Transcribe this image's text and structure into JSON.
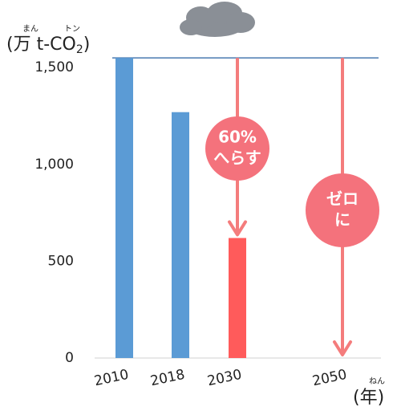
{
  "chart_data": {
    "type": "bar",
    "y_label": "(万 t-CO",
    "y_label_sub": "2",
    "y_label_end": ")",
    "y_label_ruby": [
      "まん",
      "トン"
    ],
    "x_label": "(年)",
    "x_label_ruby": "ねん",
    "categories": [
      "2010",
      "2018",
      "2030",
      "2050"
    ],
    "values": [
      1550,
      1270,
      620,
      0
    ],
    "colors": [
      "#5b9bd5",
      "#5b9bd5",
      "#ff5b5b",
      "#5b9bd5"
    ],
    "ylim": [
      0,
      1700
    ],
    "yticks": [
      0,
      500,
      {
        "value": 1000,
        "label": "1,000"
      },
      {
        "value": 1500,
        "label": "1,500"
      }
    ],
    "annotations": [
      [
        "60%",
        "へらす"
      ],
      [
        "ゼロ",
        "に"
      ]
    ]
  }
}
